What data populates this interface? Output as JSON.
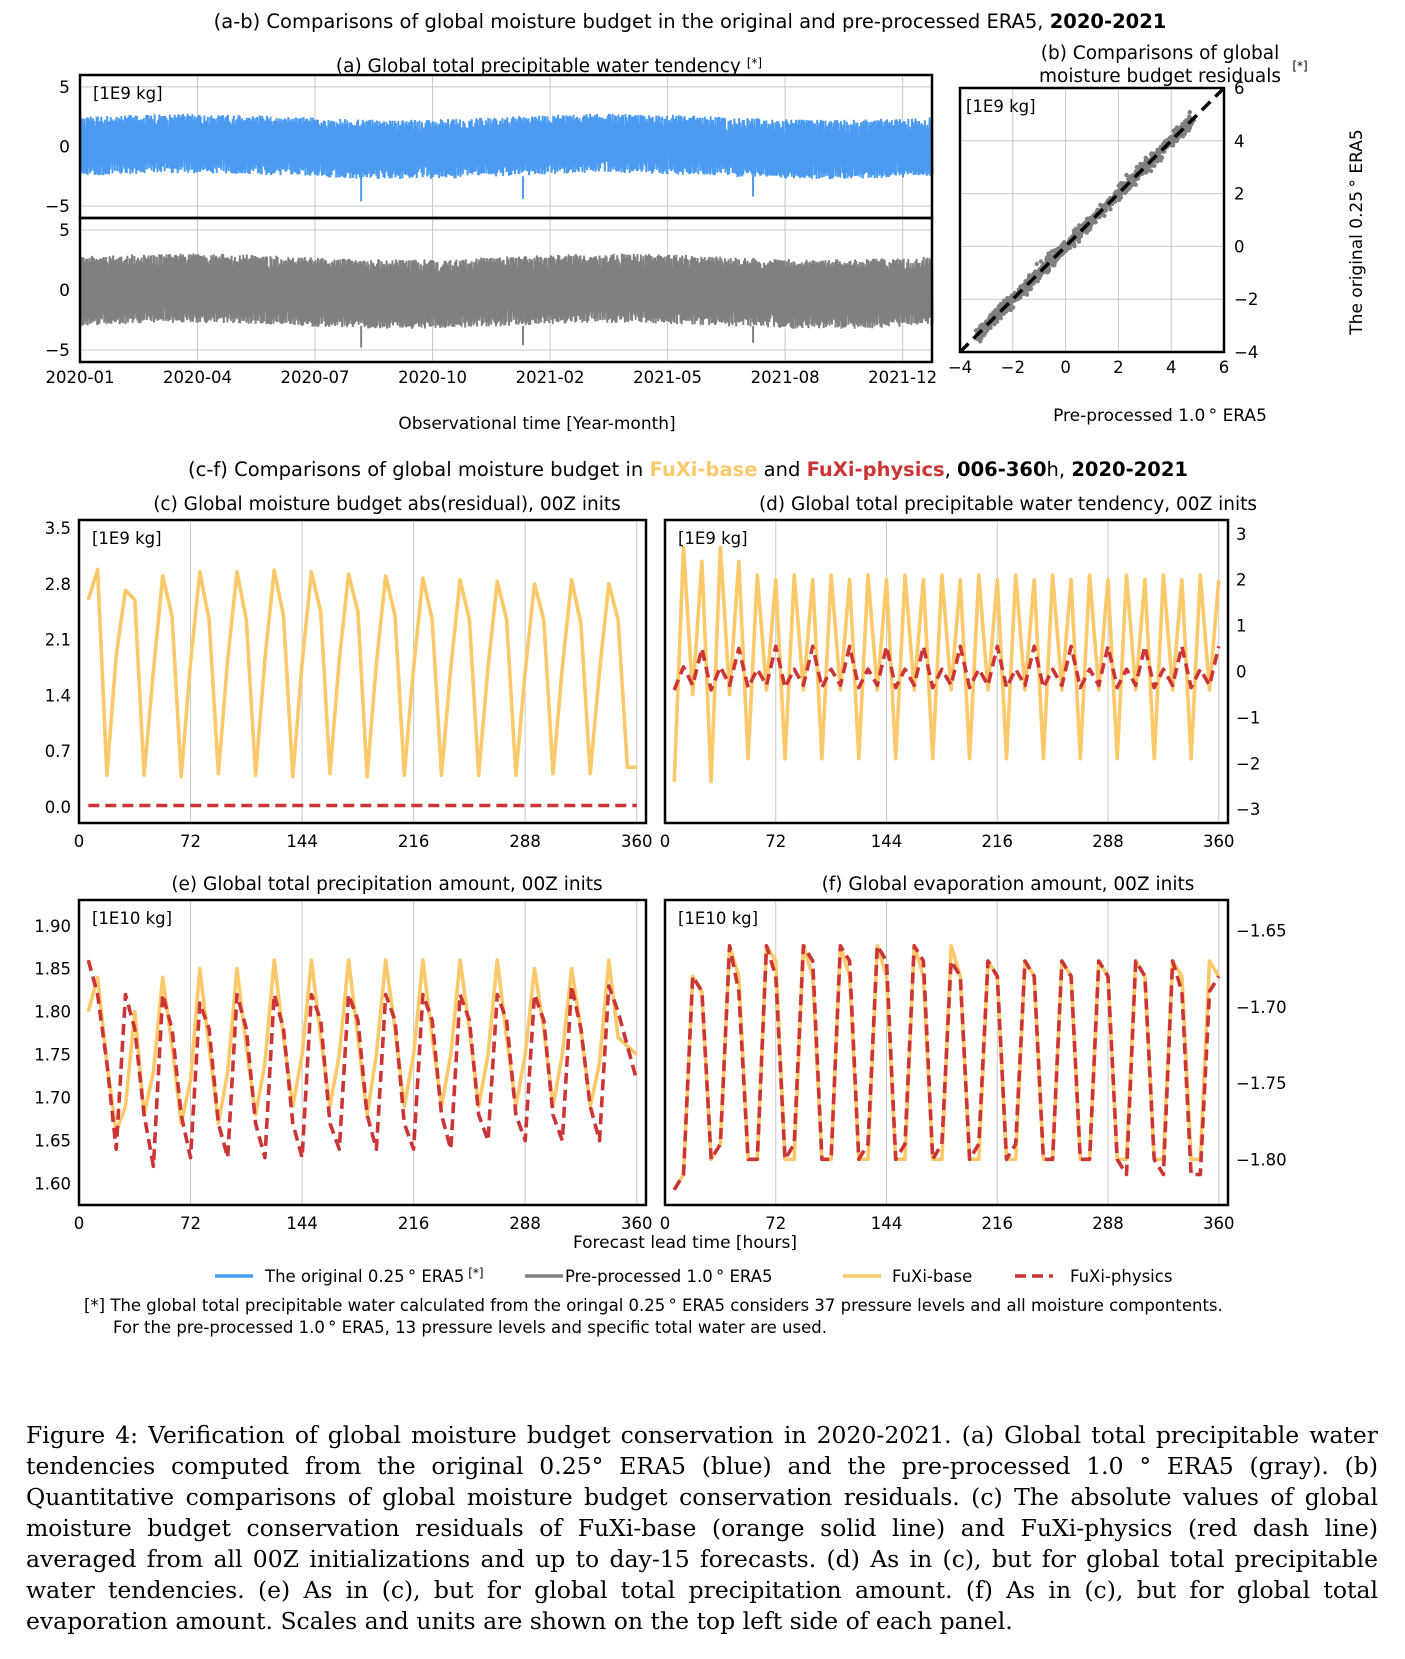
{
  "figure": {
    "title_ab": "(a-b) Comparisons of global moisture budget in the original and pre-processed ERA5,",
    "title_ab_bold": "2020-2021",
    "title_cf_prefix": "(c-f) Comparisons of global moisture budget in",
    "title_cf_base": "FuXi-base",
    "title_cf_and": "and",
    "title_cf_phys": "FuXi-physics",
    "title_cf_bold": "006-360",
    "title_cf_h": "h,",
    "title_cf_years": "2020-2021",
    "lead_time_label": "Forecast lead time [hours]",
    "legend": [
      {
        "label": "The original 0.25 ° ERA5",
        "mark": "[*]",
        "color": "#4a9af2",
        "style": "solid"
      },
      {
        "label": "Pre-processed 1.0 ° ERA5",
        "mark": "",
        "color": "#808080",
        "style": "solid"
      },
      {
        "label": "FuXi-base",
        "mark": "",
        "color": "#fbc96a",
        "style": "solid"
      },
      {
        "label": "FuXi-physics",
        "mark": "",
        "color": "#cc3535",
        "style": "dashed"
      }
    ],
    "note_line1": "[*] The global total precipitable water calculated from the oringal 0.25 ° ERA5 considers 37 pressure levels and all moisture compontents.",
    "note_line2": "For the pre-processed 1.0 ° ERA5, 13 pressure levels and specific total water are used.",
    "caption": "Figure 4: Verification of global moisture budget conservation in 2020-2021. (a) Global total precipitable water tendencies computed from the original 0.25° ERA5 (blue) and the pre-processed 1.0 ° ERA5 (gray). (b) Quantitative comparisons of global moisture budget conservation residuals. (c) The absolute values of global moisture budget conservation residuals of FuXi-base (orange solid line) and FuXi-physics (red dash line) averaged from all 00Z initializations and up to day-15 forecasts. (d) As in (c), but for global total precipitable water tendencies. (e) As in (c), but for global total precipitation amount. (f) As in (c), but for global total evaporation amount. Scales and units are shown on the top left side of each panel."
  },
  "colors": {
    "blue": "#4a9af2",
    "gray": "#808080",
    "orange": "#fbc96a",
    "red": "#cc3535",
    "grid": "#c8c8c8"
  },
  "chart_data": [
    {
      "id": "a",
      "type": "line",
      "title": "(a) Global total precipitable water tendency",
      "title_mark": "[*]",
      "unit": "[1E9 kg]",
      "xlabel": "Observational time [Year-month]",
      "x_ticks": [
        "2020-01",
        "2020-04",
        "2020-07",
        "2020-10",
        "2021-02",
        "2021-05",
        "2021-08",
        "2021-12"
      ],
      "subplots": [
        {
          "series": "The original 0.25° ERA5",
          "color": "#4a9af2",
          "ylim": [
            -6,
            6
          ],
          "yticks": [
            "5",
            "0",
            "−5"
          ],
          "band_low": -2.5,
          "band_high": 2.5,
          "extreme_low": -4.6
        },
        {
          "series": "Pre-processed 1.0° ERA5",
          "color": "#808080",
          "ylim": [
            -6,
            6
          ],
          "yticks": [
            "5",
            "0",
            "−5"
          ],
          "band_low": -3.0,
          "band_high": 2.8,
          "extreme_low": -4.8
        }
      ]
    },
    {
      "id": "b",
      "type": "scatter",
      "title_line1": "(b) Comparisons of global",
      "title_line2": "moisture budget residuals",
      "title_mark": "[*]",
      "unit": "[1E9 kg]",
      "xlabel": "Pre-processed 1.0 ° ERA5",
      "ylabel": "The original 0.25 ° ERA5",
      "xlim": [
        -4,
        6
      ],
      "ylim": [
        -4,
        6
      ],
      "x_ticks": [
        "−4",
        "−2",
        "0",
        "2",
        "4",
        "6"
      ],
      "y_ticks": [
        "−4",
        "−2",
        "0",
        "2",
        "4",
        "6"
      ],
      "spread": 0.28,
      "fit_line": "1:1 dashed black"
    },
    {
      "id": "c",
      "type": "line",
      "title": "(c) Global moisture budget abs(residual), 00Z inits",
      "unit": "[1E9 kg]",
      "xlim": [
        0,
        366
      ],
      "ylim": [
        -0.2,
        3.6
      ],
      "x_ticks": [
        "0",
        "72",
        "144",
        "216",
        "288",
        "360"
      ],
      "y_ticks": [
        "3.5",
        "2.8",
        "2.1",
        "1.4",
        "0.7",
        "0.0"
      ],
      "series": [
        {
          "name": "FuXi-base",
          "color": "#fbc96a",
          "style": "solid",
          "x": [
            6,
            12,
            18,
            24,
            30,
            36,
            42,
            48,
            54,
            60,
            66,
            72,
            78,
            84,
            90,
            96,
            102,
            108,
            114,
            120,
            126,
            132,
            138,
            144,
            150,
            156,
            162,
            168,
            174,
            180,
            186,
            192,
            198,
            204,
            210,
            216,
            222,
            228,
            234,
            240,
            246,
            252,
            258,
            264,
            270,
            276,
            282,
            288,
            294,
            300,
            306,
            312,
            318,
            324,
            330,
            336,
            342,
            348,
            354,
            360
          ],
          "y": [
            2.6,
            2.98,
            0.4,
            1.9,
            2.72,
            2.6,
            0.4,
            1.7,
            2.9,
            2.4,
            0.38,
            1.8,
            2.95,
            2.35,
            0.42,
            1.85,
            2.95,
            2.35,
            0.4,
            1.85,
            2.97,
            2.4,
            0.38,
            1.8,
            2.95,
            2.45,
            0.42,
            1.85,
            2.92,
            2.45,
            0.38,
            1.8,
            2.9,
            2.4,
            0.4,
            1.75,
            2.87,
            2.35,
            0.4,
            1.75,
            2.85,
            2.35,
            0.4,
            1.75,
            2.83,
            2.35,
            0.4,
            1.7,
            2.8,
            2.35,
            0.42,
            1.75,
            2.85,
            2.3,
            0.42,
            1.7,
            2.8,
            2.35,
            0.5,
            0.5
          ]
        },
        {
          "name": "FuXi-physics",
          "color": "#cc3535",
          "style": "dashed",
          "x": [
            6,
            360
          ],
          "y": [
            0.02,
            0.02
          ]
        }
      ]
    },
    {
      "id": "d",
      "type": "line",
      "title": "(d) Global total precipitable water tendency, 00Z inits",
      "unit": "[1E9 kg]",
      "xlim": [
        0,
        366
      ],
      "ylim": [
        -3.3,
        3.3
      ],
      "x_ticks": [
        "0",
        "72",
        "144",
        "216",
        "288",
        "360"
      ],
      "y_ticks": [
        "3",
        "2",
        "1",
        "0",
        "−1",
        "−2",
        "−3"
      ],
      "series": [
        {
          "name": "FuXi-base",
          "color": "#fbc96a",
          "style": "solid",
          "pattern": [
            -2.4,
            2.7,
            -0.5,
            2.4
          ],
          "pattern_steady": [
            -1.9,
            2.1,
            -0.4,
            2.0
          ]
        },
        {
          "name": "FuXi-physics",
          "color": "#cc3535",
          "style": "dashed",
          "pattern": [
            -0.4,
            0.1,
            -0.3,
            0.5
          ],
          "pattern_steady": [
            -0.35,
            0.05,
            -0.3,
            0.55
          ]
        }
      ]
    },
    {
      "id": "e",
      "type": "line",
      "title": "(e) Global total precipitation amount, 00Z inits",
      "unit": "[1E10 kg]",
      "xlim": [
        0,
        366
      ],
      "ylim": [
        1.575,
        1.93
      ],
      "x_ticks": [
        "0",
        "72",
        "144",
        "216",
        "288",
        "360"
      ],
      "y_ticks": [
        "1.90",
        "1.85",
        "1.80",
        "1.75",
        "1.70",
        "1.65",
        "1.60"
      ],
      "series": [
        {
          "name": "FuXi-base",
          "color": "#fbc96a",
          "style": "solid",
          "x": [
            6,
            12,
            18,
            24,
            30,
            36,
            42,
            48,
            54,
            60,
            66,
            72,
            78,
            84,
            90,
            96,
            102,
            108,
            114,
            120,
            126,
            132,
            138,
            144,
            150,
            156,
            162,
            168,
            174,
            180,
            186,
            192,
            198,
            204,
            210,
            216,
            222,
            228,
            234,
            240,
            246,
            252,
            258,
            264,
            270,
            276,
            282,
            288,
            294,
            300,
            306,
            312,
            318,
            324,
            330,
            336,
            342,
            348,
            354,
            360
          ],
          "y": [
            1.8,
            1.84,
            1.74,
            1.66,
            1.69,
            1.8,
            1.68,
            1.73,
            1.84,
            1.76,
            1.67,
            1.72,
            1.85,
            1.76,
            1.67,
            1.73,
            1.85,
            1.76,
            1.68,
            1.74,
            1.86,
            1.77,
            1.69,
            1.75,
            1.86,
            1.77,
            1.69,
            1.75,
            1.86,
            1.77,
            1.68,
            1.75,
            1.86,
            1.78,
            1.69,
            1.75,
            1.86,
            1.77,
            1.69,
            1.75,
            1.86,
            1.78,
            1.69,
            1.75,
            1.86,
            1.77,
            1.69,
            1.75,
            1.85,
            1.78,
            1.69,
            1.75,
            1.85,
            1.78,
            1.69,
            1.74,
            1.86,
            1.77,
            1.76,
            1.75
          ]
        },
        {
          "name": "FuXi-physics",
          "color": "#cc3535",
          "style": "dashed",
          "x": [
            6,
            12,
            18,
            24,
            30,
            36,
            42,
            48,
            54,
            60,
            66,
            72,
            78,
            84,
            90,
            96,
            102,
            108,
            114,
            120,
            126,
            132,
            138,
            144,
            150,
            156,
            162,
            168,
            174,
            180,
            186,
            192,
            198,
            204,
            210,
            216,
            222,
            228,
            234,
            240,
            246,
            252,
            258,
            264,
            270,
            276,
            282,
            288,
            294,
            300,
            306,
            312,
            318,
            324,
            330,
            336,
            342,
            348,
            354,
            360
          ],
          "y": [
            1.86,
            1.82,
            1.74,
            1.64,
            1.82,
            1.78,
            1.68,
            1.62,
            1.82,
            1.78,
            1.68,
            1.63,
            1.81,
            1.78,
            1.67,
            1.63,
            1.82,
            1.78,
            1.67,
            1.63,
            1.82,
            1.78,
            1.67,
            1.63,
            1.82,
            1.79,
            1.67,
            1.64,
            1.82,
            1.79,
            1.68,
            1.64,
            1.82,
            1.79,
            1.67,
            1.64,
            1.82,
            1.79,
            1.68,
            1.64,
            1.82,
            1.79,
            1.68,
            1.65,
            1.82,
            1.79,
            1.68,
            1.65,
            1.82,
            1.79,
            1.68,
            1.65,
            1.83,
            1.78,
            1.69,
            1.65,
            1.83,
            1.8,
            1.76,
            1.72
          ]
        }
      ]
    },
    {
      "id": "f",
      "type": "line",
      "title": "(f) Global evaporation amount, 00Z inits",
      "unit": "[1E10 kg]",
      "xlim": [
        0,
        366
      ],
      "ylim": [
        -1.83,
        -1.63
      ],
      "x_ticks": [
        "0",
        "72",
        "144",
        "216",
        "288",
        "360"
      ],
      "y_ticks": [
        "−1.65",
        "−1.70",
        "−1.75",
        "−1.80"
      ],
      "series": [
        {
          "name": "FuXi-base",
          "color": "#fbc96a",
          "style": "solid",
          "x": [
            6,
            12,
            18,
            24,
            30,
            36,
            42,
            48,
            54,
            60,
            66,
            72,
            78,
            84,
            90,
            96,
            102,
            108,
            114,
            120,
            126,
            132,
            138,
            144,
            150,
            156,
            162,
            168,
            174,
            180,
            186,
            192,
            198,
            204,
            210,
            216,
            222,
            228,
            234,
            240,
            246,
            252,
            258,
            264,
            270,
            276,
            282,
            288,
            294,
            300,
            306,
            312,
            318,
            324,
            330,
            336,
            342,
            348,
            354,
            360
          ],
          "y": [
            -1.82,
            -1.81,
            -1.68,
            -1.69,
            -1.8,
            -1.79,
            -1.66,
            -1.68,
            -1.8,
            -1.8,
            -1.66,
            -1.67,
            -1.8,
            -1.8,
            -1.66,
            -1.68,
            -1.8,
            -1.8,
            -1.66,
            -1.68,
            -1.8,
            -1.8,
            -1.66,
            -1.68,
            -1.8,
            -1.8,
            -1.66,
            -1.68,
            -1.8,
            -1.8,
            -1.66,
            -1.68,
            -1.8,
            -1.8,
            -1.67,
            -1.68,
            -1.8,
            -1.8,
            -1.67,
            -1.68,
            -1.8,
            -1.8,
            -1.67,
            -1.68,
            -1.8,
            -1.8,
            -1.67,
            -1.68,
            -1.8,
            -1.8,
            -1.67,
            -1.68,
            -1.8,
            -1.8,
            -1.67,
            -1.68,
            -1.8,
            -1.8,
            -1.67,
            -1.68
          ]
        },
        {
          "name": "FuXi-physics",
          "color": "#cc3535",
          "style": "dashed",
          "x": [
            6,
            12,
            18,
            24,
            30,
            36,
            42,
            48,
            54,
            60,
            66,
            72,
            78,
            84,
            90,
            96,
            102,
            108,
            114,
            120,
            126,
            132,
            138,
            144,
            150,
            156,
            162,
            168,
            174,
            180,
            186,
            192,
            198,
            204,
            210,
            216,
            222,
            228,
            234,
            240,
            246,
            252,
            258,
            264,
            270,
            276,
            282,
            288,
            294,
            300,
            306,
            312,
            318,
            324,
            330,
            336,
            342,
            348,
            354,
            360
          ],
          "y": [
            -1.82,
            -1.81,
            -1.68,
            -1.69,
            -1.8,
            -1.79,
            -1.66,
            -1.69,
            -1.8,
            -1.8,
            -1.66,
            -1.68,
            -1.8,
            -1.79,
            -1.66,
            -1.67,
            -1.8,
            -1.8,
            -1.66,
            -1.67,
            -1.8,
            -1.79,
            -1.66,
            -1.67,
            -1.8,
            -1.79,
            -1.66,
            -1.67,
            -1.8,
            -1.79,
            -1.67,
            -1.68,
            -1.8,
            -1.79,
            -1.67,
            -1.68,
            -1.8,
            -1.79,
            -1.67,
            -1.68,
            -1.8,
            -1.8,
            -1.67,
            -1.68,
            -1.8,
            -1.8,
            -1.67,
            -1.68,
            -1.8,
            -1.81,
            -1.67,
            -1.68,
            -1.8,
            -1.81,
            -1.67,
            -1.69,
            -1.81,
            -1.81,
            -1.69,
            -1.68
          ]
        }
      ]
    }
  ]
}
